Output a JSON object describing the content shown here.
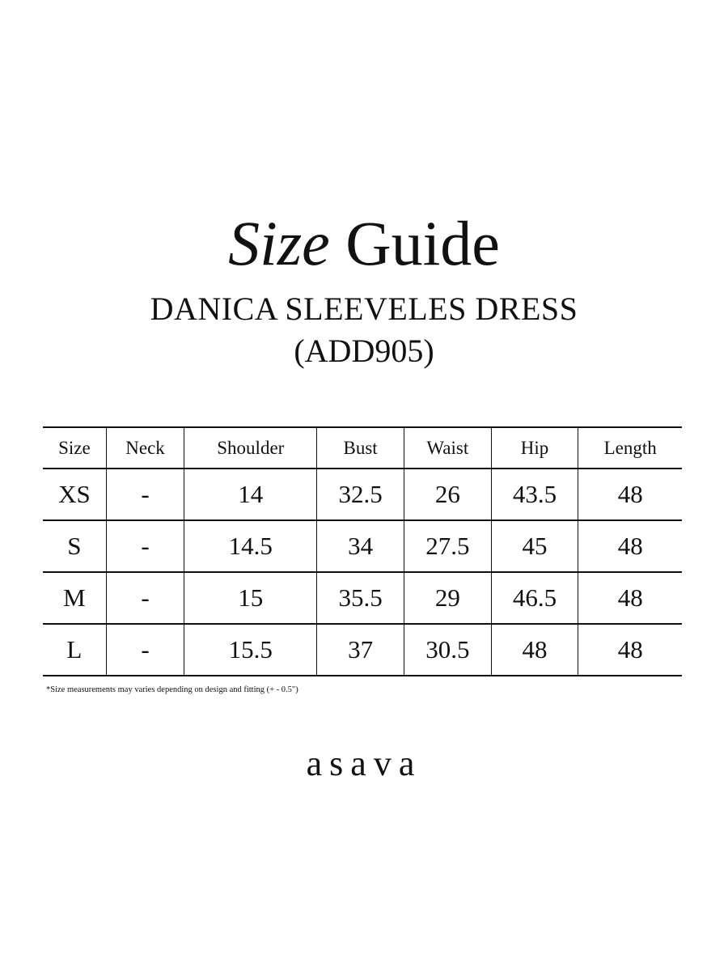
{
  "title": {
    "italic": "Size",
    "regular": "Guide"
  },
  "product_name": "DANICA SLEEVELES DRESS",
  "product_code": "(ADD905)",
  "table": {
    "headers": [
      "Size",
      "Neck",
      "Shoulder",
      "Bust",
      "Waist",
      "Hip",
      "Length"
    ],
    "rows": [
      [
        "XS",
        "-",
        "14",
        "32.5",
        "26",
        "43.5",
        "48"
      ],
      [
        "S",
        "-",
        "14.5",
        "34",
        "27.5",
        "45",
        "48"
      ],
      [
        "M",
        "-",
        "15",
        "35.5",
        "29",
        "46.5",
        "48"
      ],
      [
        "L",
        "-",
        "15.5",
        "37",
        "30.5",
        "48",
        "48"
      ]
    ]
  },
  "note": "*Size measurements may varies depending on design and fitting (+ - 0.5\")",
  "brand": "asava"
}
